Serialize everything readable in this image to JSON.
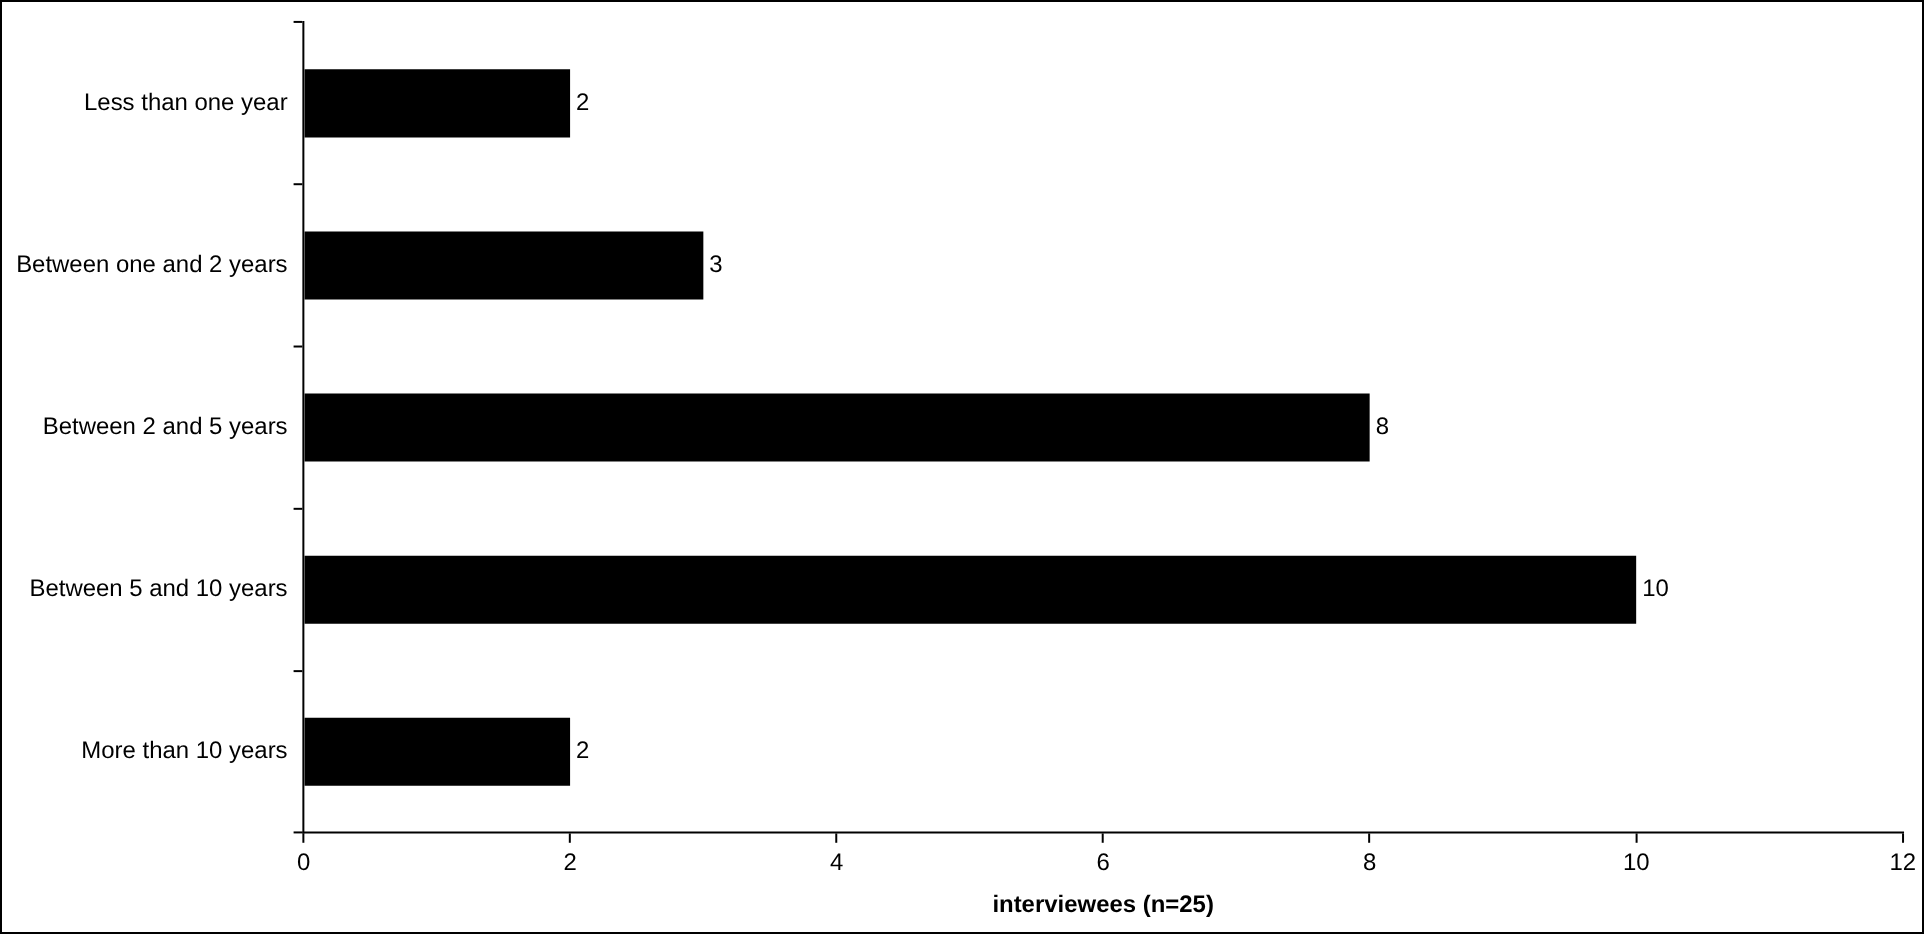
{
  "chart_data": {
    "type": "bar",
    "orientation": "horizontal",
    "xlabel": "interviewees (n=25)",
    "categories": [
      "Less than one year",
      "Between one and 2 years",
      "Between 2 and 5 years",
      "Between 5 and 10 years",
      "More than 10 years"
    ],
    "values": [
      2,
      3,
      8,
      10,
      2
    ],
    "color": "#000000",
    "xlim": [
      0,
      12
    ],
    "xticks": [
      0,
      2,
      4,
      6,
      8,
      10,
      12
    ],
    "grid": false,
    "legend": false,
    "data_labels": true
  }
}
